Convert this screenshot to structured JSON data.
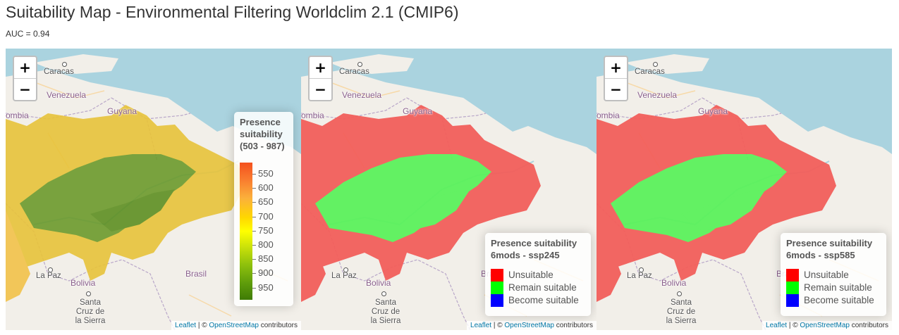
{
  "title": "Suitability Map - Environmental Filtering Worldclim 2.1 (CMIP6)",
  "auc": "AUC = 0.94",
  "zoom": {
    "in": "+",
    "out": "−"
  },
  "place_labels": {
    "caracas": "Caracas",
    "venezuela": "Venezuela",
    "colombia": "ombia",
    "guyana": "Guyana",
    "la_paz": "La Paz",
    "bolivia": "Bolivia",
    "brasil": "Brasil",
    "santa_cruz": "Santa Cruz de la Sierra"
  },
  "attribution": {
    "leaflet": "Leaflet",
    "sep": "| ©",
    "osm": "OpenStreetMap",
    "contrib": "contributors"
  },
  "map1_legend": {
    "title_line1": "Presence",
    "title_line2": "suitability",
    "title_line3": "(503 - 987)",
    "ticks": [
      "550",
      "600",
      "650",
      "700",
      "750",
      "800",
      "850",
      "900",
      "950"
    ],
    "colors": {
      "low": "#f4511e",
      "mid": "#ffff00",
      "high": "#3f7b05"
    }
  },
  "map2_legend": {
    "title_line1": "Presence suitability",
    "title_line2": "6mods - ssp245",
    "items": [
      {
        "label": "Unsuitable",
        "color": "#ff0000"
      },
      {
        "label": "Remain suitable",
        "color": "#00ff00"
      },
      {
        "label": "Become suitable",
        "color": "#0000ff"
      }
    ]
  },
  "map3_legend": {
    "title_line1": "Presence suitability",
    "title_line2": "6mods - ssp585",
    "items": [
      {
        "label": "Unsuitable",
        "color": "#ff0000"
      },
      {
        "label": "Remain suitable",
        "color": "#00ff00"
      },
      {
        "label": "Become suitable",
        "color": "#0000ff"
      }
    ]
  }
}
